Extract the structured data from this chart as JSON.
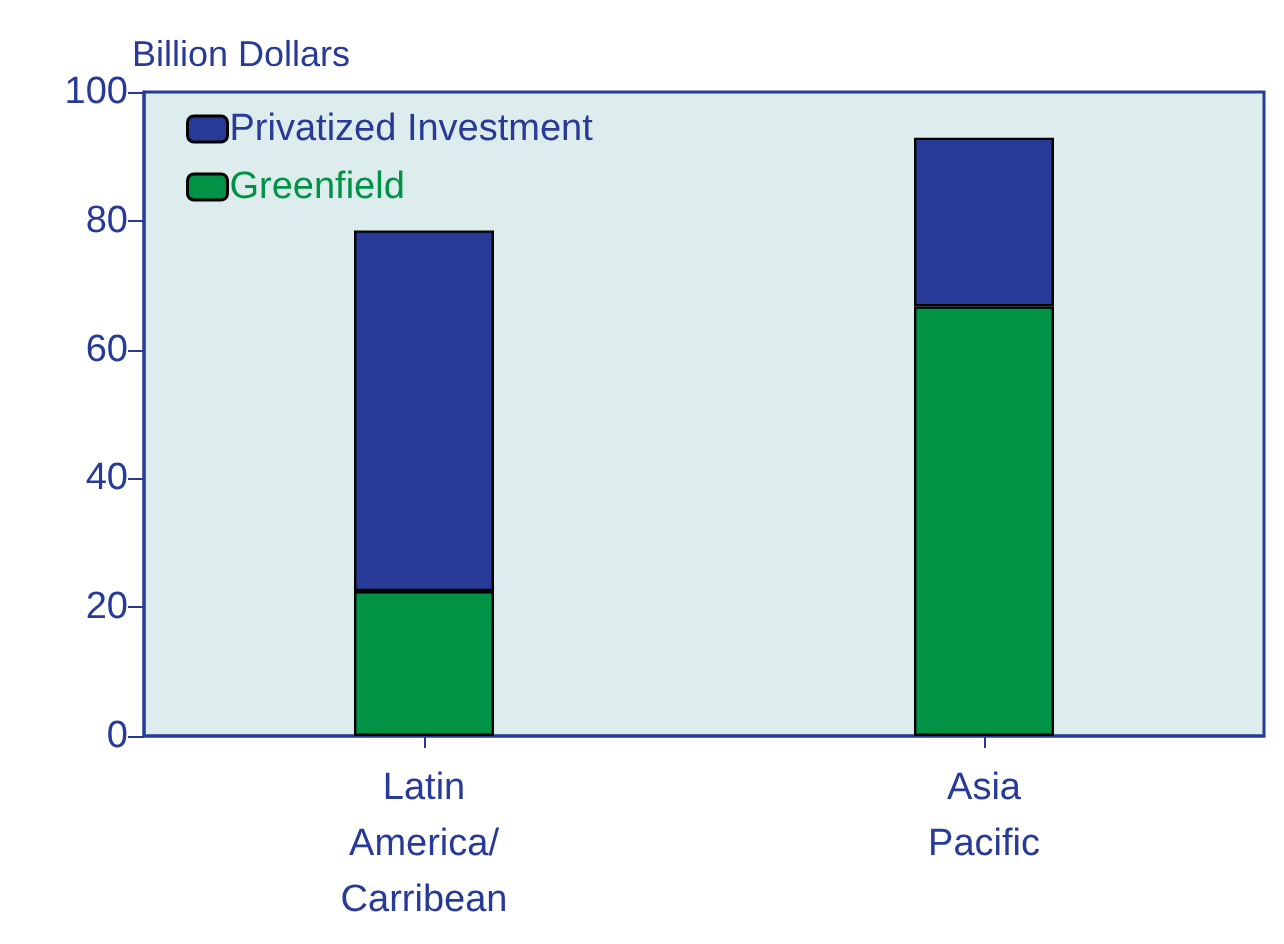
{
  "chart_data": {
    "type": "bar",
    "ylabel": "Billion Dollars",
    "categories": [
      "Latin\nAmerica/\nCarribean",
      "Asia\nPacific"
    ],
    "stacked": true,
    "series": [
      {
        "name": "Greenfield",
        "color": "#009245",
        "values": [
          22.5,
          66.7
        ]
      },
      {
        "name": "Privatized Investment",
        "color": "#283a97",
        "values": [
          56,
          26.2
        ]
      }
    ],
    "ylim": [
      0,
      100
    ],
    "yticks": [
      0,
      20,
      40,
      60,
      80,
      100
    ],
    "grid": false,
    "legend": "top left"
  }
}
